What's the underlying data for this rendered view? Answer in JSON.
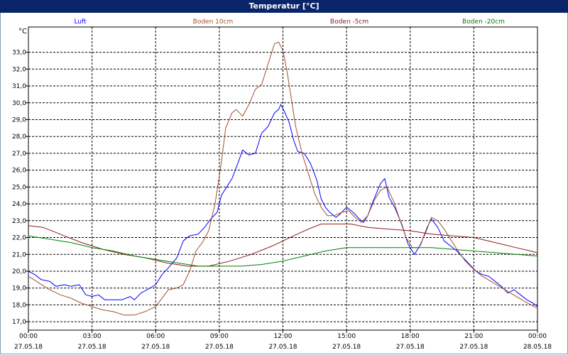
{
  "window": {
    "title": "Temperatur [°C]"
  },
  "chart_data": {
    "type": "line",
    "title": "Temperatur [°C]",
    "y_unit": "°C",
    "ylim": [
      16.5,
      34.5
    ],
    "y_ticks": [
      17,
      18,
      19,
      20,
      21,
      22,
      23,
      24,
      25,
      26,
      27,
      28,
      29,
      30,
      31,
      32,
      33
    ],
    "y_tick_labels": [
      "17,0",
      "18,0",
      "19,0",
      "20,0",
      "21,0",
      "22,0",
      "23,0",
      "24,0",
      "25,0",
      "26,0",
      "27,0",
      "28,0",
      "29,0",
      "30,0",
      "31,0",
      "32,0",
      "33,0"
    ],
    "xlim": [
      0,
      24
    ],
    "x_ticks": [
      0,
      3,
      6,
      9,
      12,
      15,
      18,
      21,
      24
    ],
    "x_tick_labels": [
      {
        "time": "00:00",
        "date": "27.05.18"
      },
      {
        "time": "03:00",
        "date": "27.05.18"
      },
      {
        "time": "06:00",
        "date": "27.05.18"
      },
      {
        "time": "09:00",
        "date": "27.05.18"
      },
      {
        "time": "12:00",
        "date": "27.05.18"
      },
      {
        "time": "15:00",
        "date": "27.05.18"
      },
      {
        "time": "18:00",
        "date": "27.05.18"
      },
      {
        "time": "21:00",
        "date": "27.05.18"
      },
      {
        "time": "00:00",
        "date": "28.05.18"
      }
    ],
    "grid": true,
    "legend_position": "top",
    "series": [
      {
        "name": "Luft",
        "color": "#0000ff",
        "points": [
          [
            0,
            20.0
          ],
          [
            0.3,
            19.8
          ],
          [
            0.6,
            19.5
          ],
          [
            1.0,
            19.4
          ],
          [
            1.3,
            19.1
          ],
          [
            1.7,
            19.2
          ],
          [
            2.0,
            19.1
          ],
          [
            2.4,
            19.2
          ],
          [
            2.7,
            18.6
          ],
          [
            3.0,
            18.5
          ],
          [
            3.3,
            18.6
          ],
          [
            3.6,
            18.3
          ],
          [
            4.0,
            18.3
          ],
          [
            4.4,
            18.3
          ],
          [
            4.8,
            18.5
          ],
          [
            5.0,
            18.3
          ],
          [
            5.3,
            18.7
          ],
          [
            5.6,
            18.9
          ],
          [
            6.0,
            19.2
          ],
          [
            6.3,
            19.8
          ],
          [
            6.6,
            20.2
          ],
          [
            7.0,
            20.8
          ],
          [
            7.3,
            21.8
          ],
          [
            7.6,
            22.1
          ],
          [
            8.0,
            22.2
          ],
          [
            8.3,
            22.6
          ],
          [
            8.6,
            23.1
          ],
          [
            8.9,
            23.5
          ],
          [
            9.1,
            24.5
          ],
          [
            9.3,
            24.9
          ],
          [
            9.6,
            25.5
          ],
          [
            9.9,
            26.5
          ],
          [
            10.1,
            27.2
          ],
          [
            10.4,
            26.9
          ],
          [
            10.7,
            27.0
          ],
          [
            11.0,
            28.2
          ],
          [
            11.3,
            28.6
          ],
          [
            11.6,
            29.4
          ],
          [
            11.8,
            29.6
          ],
          [
            11.9,
            29.9
          ],
          [
            12.1,
            29.4
          ],
          [
            12.3,
            28.8
          ],
          [
            12.5,
            27.8
          ],
          [
            12.7,
            27.1
          ],
          [
            13.0,
            27.0
          ],
          [
            13.3,
            26.4
          ],
          [
            13.6,
            25.4
          ],
          [
            13.8,
            24.3
          ],
          [
            14.0,
            23.8
          ],
          [
            14.2,
            23.5
          ],
          [
            14.5,
            23.2
          ],
          [
            14.7,
            23.4
          ],
          [
            15.0,
            23.8
          ],
          [
            15.3,
            23.5
          ],
          [
            15.6,
            23.1
          ],
          [
            15.8,
            22.9
          ],
          [
            16.0,
            23.3
          ],
          [
            16.2,
            24.0
          ],
          [
            16.4,
            24.6
          ],
          [
            16.6,
            25.2
          ],
          [
            16.8,
            25.5
          ],
          [
            17.0,
            24.4
          ],
          [
            17.3,
            23.7
          ],
          [
            17.6,
            22.8
          ],
          [
            17.9,
            21.6
          ],
          [
            18.2,
            21.0
          ],
          [
            18.5,
            21.6
          ],
          [
            18.8,
            22.6
          ],
          [
            19.0,
            23.1
          ],
          [
            19.3,
            22.6
          ],
          [
            19.6,
            21.8
          ],
          [
            19.9,
            21.5
          ],
          [
            20.2,
            21.2
          ],
          [
            20.5,
            20.8
          ],
          [
            20.8,
            20.4
          ],
          [
            21.1,
            20.0
          ],
          [
            21.4,
            19.8
          ],
          [
            21.7,
            19.7
          ],
          [
            22.0,
            19.4
          ],
          [
            22.3,
            19.1
          ],
          [
            22.6,
            18.7
          ],
          [
            22.9,
            18.9
          ],
          [
            23.2,
            18.6
          ],
          [
            23.5,
            18.3
          ],
          [
            23.8,
            18.1
          ],
          [
            24.0,
            17.9
          ]
        ]
      },
      {
        "name": "Boden 10cm",
        "color": "#a0522d",
        "points": [
          [
            0,
            19.7
          ],
          [
            0.5,
            19.3
          ],
          [
            1.0,
            18.9
          ],
          [
            1.5,
            18.6
          ],
          [
            2.0,
            18.4
          ],
          [
            2.5,
            18.1
          ],
          [
            3.0,
            17.9
          ],
          [
            3.5,
            17.7
          ],
          [
            4.0,
            17.6
          ],
          [
            4.5,
            17.4
          ],
          [
            5.0,
            17.4
          ],
          [
            5.5,
            17.6
          ],
          [
            6.0,
            17.9
          ],
          [
            6.3,
            18.4
          ],
          [
            6.6,
            18.9
          ],
          [
            7.0,
            19.0
          ],
          [
            7.3,
            19.2
          ],
          [
            7.6,
            20.0
          ],
          [
            7.9,
            21.2
          ],
          [
            8.2,
            21.7
          ],
          [
            8.5,
            22.4
          ],
          [
            8.8,
            24.0
          ],
          [
            9.1,
            26.5
          ],
          [
            9.3,
            28.5
          ],
          [
            9.6,
            29.4
          ],
          [
            9.8,
            29.6
          ],
          [
            10.1,
            29.2
          ],
          [
            10.4,
            29.9
          ],
          [
            10.7,
            30.8
          ],
          [
            11.0,
            31.1
          ],
          [
            11.3,
            32.3
          ],
          [
            11.6,
            33.5
          ],
          [
            11.8,
            33.6
          ],
          [
            12.0,
            33.1
          ],
          [
            12.2,
            31.8
          ],
          [
            12.4,
            30.2
          ],
          [
            12.6,
            28.6
          ],
          [
            12.9,
            27.0
          ],
          [
            13.2,
            25.8
          ],
          [
            13.5,
            24.6
          ],
          [
            13.8,
            23.8
          ],
          [
            14.1,
            23.3
          ],
          [
            14.4,
            23.3
          ],
          [
            14.8,
            23.5
          ],
          [
            15.1,
            23.6
          ],
          [
            15.4,
            23.2
          ],
          [
            15.7,
            22.9
          ],
          [
            16.0,
            23.3
          ],
          [
            16.3,
            24.2
          ],
          [
            16.6,
            24.8
          ],
          [
            16.9,
            25.0
          ],
          [
            17.2,
            24.2
          ],
          [
            17.5,
            23.1
          ],
          [
            17.8,
            22.0
          ],
          [
            18.1,
            21.4
          ],
          [
            18.4,
            21.4
          ],
          [
            18.7,
            22.2
          ],
          [
            19.0,
            23.2
          ],
          [
            19.3,
            23.0
          ],
          [
            19.6,
            22.5
          ],
          [
            19.9,
            21.9
          ],
          [
            20.2,
            21.3
          ],
          [
            20.6,
            20.6
          ],
          [
            21.0,
            20.1
          ],
          [
            21.4,
            19.7
          ],
          [
            21.8,
            19.4
          ],
          [
            22.2,
            19.1
          ],
          [
            22.6,
            18.8
          ],
          [
            23.0,
            18.5
          ],
          [
            23.4,
            18.2
          ],
          [
            23.7,
            18.0
          ],
          [
            24.0,
            17.8
          ]
        ]
      },
      {
        "name": "Boden -5cm",
        "color": "#8b1a1a",
        "points": [
          [
            0,
            22.7
          ],
          [
            0.7,
            22.6
          ],
          [
            1.5,
            22.2
          ],
          [
            2.5,
            21.7
          ],
          [
            3.5,
            21.3
          ],
          [
            4.5,
            21.0
          ],
          [
            5.5,
            20.8
          ],
          [
            6.5,
            20.5
          ],
          [
            7.5,
            20.3
          ],
          [
            8.5,
            20.3
          ],
          [
            9.5,
            20.6
          ],
          [
            10.5,
            21.0
          ],
          [
            11.5,
            21.5
          ],
          [
            12.5,
            22.1
          ],
          [
            13.2,
            22.5
          ],
          [
            13.8,
            22.8
          ],
          [
            14.5,
            22.8
          ],
          [
            15.2,
            22.8
          ],
          [
            16.0,
            22.6
          ],
          [
            17.0,
            22.5
          ],
          [
            18.0,
            22.4
          ],
          [
            19.0,
            22.2
          ],
          [
            20.0,
            22.1
          ],
          [
            21.0,
            22.0
          ],
          [
            22.0,
            21.7
          ],
          [
            23.0,
            21.4
          ],
          [
            24.0,
            21.1
          ]
        ]
      },
      {
        "name": "Boden -20cm",
        "color": "#008000",
        "points": [
          [
            0,
            22.1
          ],
          [
            1.0,
            21.9
          ],
          [
            2.0,
            21.7
          ],
          [
            3.0,
            21.4
          ],
          [
            4.0,
            21.2
          ],
          [
            5.0,
            20.9
          ],
          [
            6.0,
            20.7
          ],
          [
            7.0,
            20.5
          ],
          [
            8.0,
            20.3
          ],
          [
            9.0,
            20.3
          ],
          [
            10.0,
            20.3
          ],
          [
            11.0,
            20.4
          ],
          [
            12.0,
            20.6
          ],
          [
            13.0,
            20.9
          ],
          [
            14.0,
            21.2
          ],
          [
            15.0,
            21.4
          ],
          [
            16.0,
            21.4
          ],
          [
            17.0,
            21.4
          ],
          [
            18.0,
            21.4
          ],
          [
            19.0,
            21.4
          ],
          [
            20.0,
            21.3
          ],
          [
            21.0,
            21.2
          ],
          [
            22.0,
            21.1
          ],
          [
            23.0,
            21.0
          ],
          [
            24.0,
            20.9
          ]
        ]
      }
    ]
  }
}
